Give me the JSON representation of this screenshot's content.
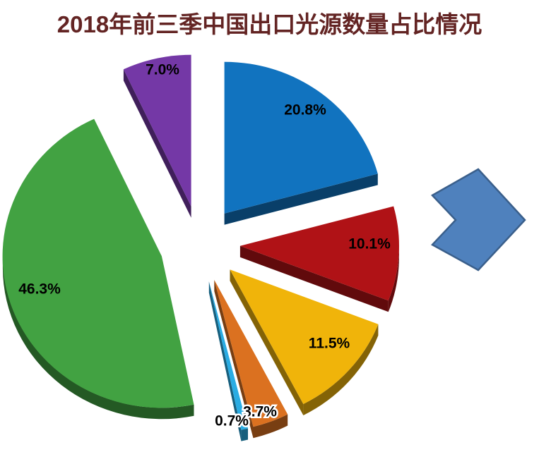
{
  "title": {
    "text": "2018年前三季中国出口光源数量占比情况",
    "color": "#632423"
  },
  "background": "#FFFFFF",
  "chart_data": {
    "type": "pie",
    "style": "3d-exploded",
    "title": "2018年前三季中国出口光源数量占比情况",
    "start_angle_deg": 0,
    "direction": "clockwise",
    "legend": "none",
    "label_color": "#000000",
    "segments": [
      {
        "label": "20.8%",
        "value": 20.8,
        "color": "#1173BF"
      },
      {
        "label": "10.1%",
        "value": 10.1,
        "color": "#B01216"
      },
      {
        "label": "11.5%",
        "value": 11.5,
        "color": "#F0B40A"
      },
      {
        "label": "3.7%",
        "value": 3.7,
        "color": "#DB7120"
      },
      {
        "label": "0.7%",
        "value": 0.7,
        "color": "#29ACE3"
      },
      {
        "label": "46.3%",
        "value": 46.3,
        "color": "#42A242"
      },
      {
        "label": "7.0%",
        "value": 7.0,
        "color": "#7438A6"
      }
    ]
  },
  "arrow": {
    "name": "right-arrow",
    "fill": "#4F81BD",
    "stroke": "#3A5F8B"
  }
}
